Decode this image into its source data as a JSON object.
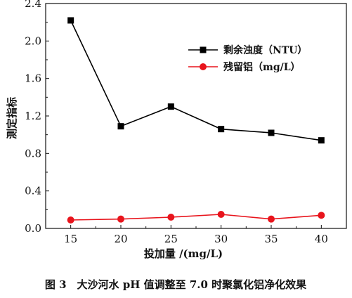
{
  "chart_data": {
    "type": "line",
    "xlabel": "投加量 /(mg/L)",
    "ylabel": "测定指标",
    "x": [
      15,
      20,
      25,
      30,
      35,
      40
    ],
    "xlim": [
      12.5,
      42.5
    ],
    "ylim": [
      0.0,
      2.4
    ],
    "xticks": [
      "15",
      "20",
      "25",
      "30",
      "35",
      "40"
    ],
    "yticks": [
      "0.0",
      "0.4",
      "0.8",
      "1.2",
      "1.6",
      "2.0",
      "2.4"
    ],
    "grid": false,
    "legend_position": "upper right",
    "series": [
      {
        "name": "剩余浊度（NTU）",
        "values": [
          2.22,
          1.09,
          1.3,
          1.06,
          1.02,
          0.94
        ],
        "color": "#000000",
        "marker": "square"
      },
      {
        "name": "残留铝（mg/L）",
        "values": [
          0.09,
          0.1,
          0.12,
          0.15,
          0.1,
          0.14
        ],
        "color": "#e8141c",
        "marker": "circle"
      }
    ]
  },
  "caption": "图 3　大沙河水 pH 值调整至 7.0 时聚氯化铝净化效果"
}
